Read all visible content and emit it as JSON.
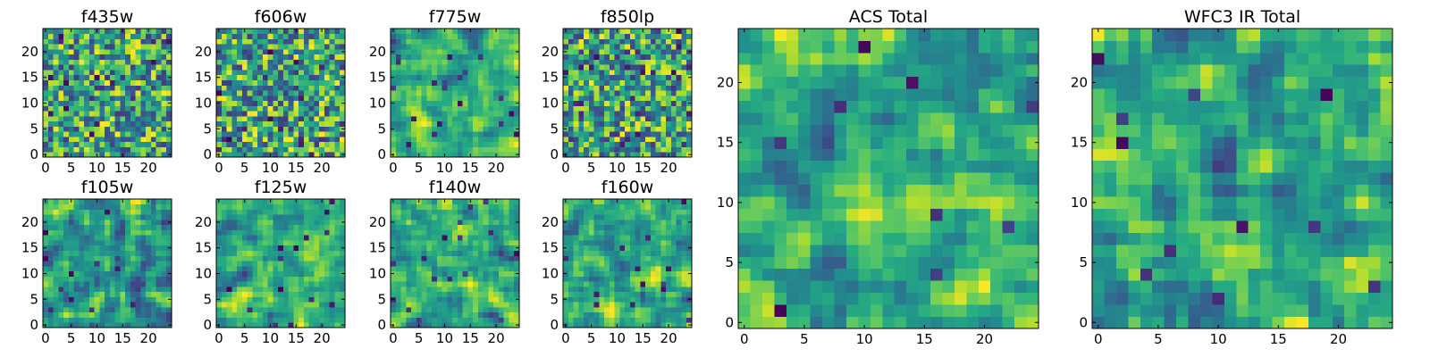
{
  "chart_data": [
    {
      "type": "heatmap",
      "title": "f435w",
      "rows": 25,
      "cols": 25,
      "xticks": [
        0,
        5,
        10,
        15,
        20
      ],
      "yticks": [
        0,
        5,
        10,
        15,
        20
      ],
      "xlim": [
        -0.5,
        24.5
      ],
      "ylim": [
        -0.5,
        24.5
      ],
      "colormap": "viridis",
      "origin": "lower"
    },
    {
      "type": "heatmap",
      "title": "f606w",
      "rows": 25,
      "cols": 25,
      "xticks": [
        0,
        5,
        10,
        15,
        20
      ],
      "yticks": [
        0,
        5,
        10,
        15,
        20
      ],
      "xlim": [
        -0.5,
        24.5
      ],
      "ylim": [
        -0.5,
        24.5
      ],
      "colormap": "viridis",
      "origin": "lower"
    },
    {
      "type": "heatmap",
      "title": "f775w",
      "rows": 25,
      "cols": 25,
      "xticks": [
        0,
        5,
        10,
        15,
        20
      ],
      "yticks": [
        0,
        5,
        10,
        15,
        20
      ],
      "xlim": [
        -0.5,
        24.5
      ],
      "ylim": [
        -0.5,
        24.5
      ],
      "colormap": "viridis",
      "origin": "lower"
    },
    {
      "type": "heatmap",
      "title": "f850lp",
      "rows": 25,
      "cols": 25,
      "xticks": [
        0,
        5,
        10,
        15,
        20
      ],
      "yticks": [
        0,
        5,
        10,
        15,
        20
      ],
      "xlim": [
        -0.5,
        24.5
      ],
      "ylim": [
        -0.5,
        24.5
      ],
      "colormap": "viridis",
      "origin": "lower"
    },
    {
      "type": "heatmap",
      "title": "f105w",
      "rows": 25,
      "cols": 25,
      "xticks": [
        0,
        5,
        10,
        15,
        20
      ],
      "yticks": [
        0,
        5,
        10,
        15,
        20
      ],
      "xlim": [
        -0.5,
        24.5
      ],
      "ylim": [
        -0.5,
        24.5
      ],
      "colormap": "viridis",
      "origin": "lower"
    },
    {
      "type": "heatmap",
      "title": "f125w",
      "rows": 25,
      "cols": 25,
      "xticks": [
        0,
        5,
        10,
        15,
        20
      ],
      "yticks": [
        0,
        5,
        10,
        15,
        20
      ],
      "xlim": [
        -0.5,
        24.5
      ],
      "ylim": [
        -0.5,
        24.5
      ],
      "colormap": "viridis",
      "origin": "lower"
    },
    {
      "type": "heatmap",
      "title": "f140w",
      "rows": 25,
      "cols": 25,
      "xticks": [
        0,
        5,
        10,
        15,
        20
      ],
      "yticks": [
        0,
        5,
        10,
        15,
        20
      ],
      "xlim": [
        -0.5,
        24.5
      ],
      "ylim": [
        -0.5,
        24.5
      ],
      "colormap": "viridis",
      "origin": "lower"
    },
    {
      "type": "heatmap",
      "title": "f160w",
      "rows": 25,
      "cols": 25,
      "xticks": [
        0,
        5,
        10,
        15,
        20
      ],
      "yticks": [
        0,
        5,
        10,
        15,
        20
      ],
      "xlim": [
        -0.5,
        24.5
      ],
      "ylim": [
        -0.5,
        24.5
      ],
      "colormap": "viridis",
      "origin": "lower"
    },
    {
      "type": "heatmap",
      "title": "ACS Total",
      "rows": 25,
      "cols": 25,
      "xticks": [
        0,
        5,
        10,
        15,
        20
      ],
      "yticks": [
        0,
        5,
        10,
        15,
        20
      ],
      "xlim": [
        -0.5,
        24.5
      ],
      "ylim": [
        -0.5,
        24.5
      ],
      "colormap": "viridis",
      "origin": "lower"
    },
    {
      "type": "heatmap",
      "title": "WFC3 IR Total",
      "rows": 25,
      "cols": 25,
      "xticks": [
        0,
        5,
        10,
        15,
        20
      ],
      "yticks": [
        0,
        5,
        10,
        15,
        20
      ],
      "xlim": [
        -0.5,
        24.5
      ],
      "ylim": [
        -0.5,
        24.5
      ],
      "colormap": "viridis",
      "origin": "lower"
    }
  ]
}
